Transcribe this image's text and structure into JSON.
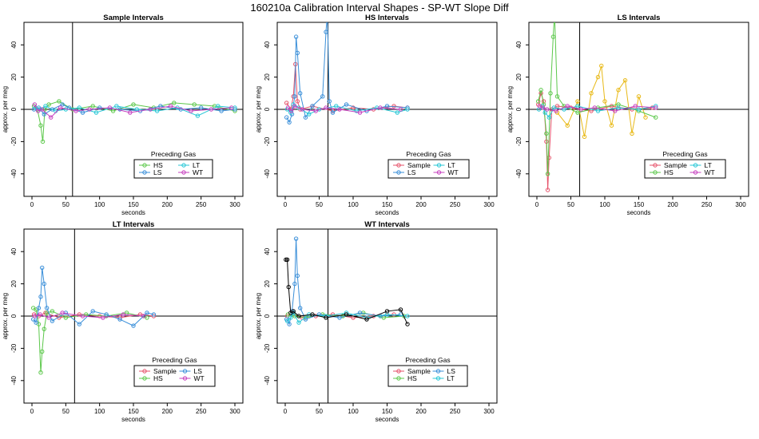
{
  "title": "160210a   Calibration Interval Shapes - SP-WT Slope Diff",
  "colors": {
    "Sample": "#E6536B",
    "HS": "#5CC84B",
    "LS": "#3A8FD9",
    "LT": "#27C7D6",
    "WT": "#C63FBF",
    "Self": "#000000",
    "Extra": "#E8B917"
  },
  "chart_data": [
    {
      "type": "scatter",
      "title": "Sample Intervals",
      "xlabel": "seconds",
      "ylabel": "approx. per meg",
      "xlim": [
        0,
        300
      ],
      "ylim": [
        -50,
        50
      ],
      "xticks": [
        0,
        50,
        100,
        150,
        200,
        250,
        300
      ],
      "yticks": [
        -40,
        -20,
        0,
        20,
        40
      ],
      "vline": 60,
      "hline": 0,
      "legend": {
        "title": "Preceding Gas",
        "entries": [
          "HS",
          "LT",
          "LS",
          "WT"
        ]
      },
      "series": [
        {
          "name": "HS",
          "x": [
            3,
            8,
            13,
            16,
            19,
            25,
            40,
            60,
            90,
            120,
            150,
            180,
            210,
            240,
            270,
            300
          ],
          "y": [
            2,
            0,
            -10,
            -20,
            0,
            3,
            5,
            0,
            2,
            -1,
            3,
            1,
            4,
            3,
            2,
            -1
          ]
        },
        {
          "name": "LS",
          "x": [
            3,
            10,
            18,
            30,
            45,
            55,
            75,
            100,
            130,
            160,
            190,
            220,
            250,
            280,
            300
          ],
          "y": [
            0,
            1,
            -3,
            0,
            3,
            1,
            -2,
            1,
            0,
            -1,
            2,
            0,
            1,
            -1,
            0
          ]
        },
        {
          "name": "LT",
          "x": [
            5,
            12,
            20,
            35,
            50,
            70,
            95,
            125,
            155,
            185,
            215,
            245,
            275,
            300
          ],
          "y": [
            1,
            0,
            2,
            -1,
            0,
            1,
            -2,
            2,
            0,
            -1,
            1,
            -4,
            2,
            1
          ]
        },
        {
          "name": "WT",
          "x": [
            4,
            9,
            15,
            28,
            42,
            65,
            85,
            115,
            145,
            175,
            205,
            235,
            265,
            295
          ],
          "y": [
            3,
            -1,
            0,
            -5,
            1,
            -1,
            0,
            1,
            -2,
            0,
            2,
            -1,
            0,
            1
          ]
        }
      ]
    },
    {
      "type": "scatter",
      "title": "HS Intervals",
      "xlabel": "seconds",
      "ylabel": "approx. per meg",
      "xlim": [
        0,
        300
      ],
      "ylim": [
        -50,
        50
      ],
      "xticks": [
        0,
        50,
        100,
        150,
        200,
        250,
        300
      ],
      "yticks": [
        -40,
        -20,
        0,
        20,
        40
      ],
      "vline": 63,
      "hline": 0,
      "legend": {
        "title": "Preceding Gas",
        "entries": [
          "Sample",
          "LT",
          "LS",
          "WT"
        ]
      },
      "series": [
        {
          "name": "Sample",
          "x": [
            2,
            8,
            12,
            15,
            18,
            22,
            40,
            70,
            100,
            130,
            160,
            180
          ],
          "y": [
            4,
            0,
            8,
            28,
            5,
            0,
            2,
            -1,
            1,
            0,
            2,
            1
          ]
        },
        {
          "name": "LS",
          "x": [
            2,
            6,
            10,
            14,
            16,
            18,
            22,
            30,
            40,
            55,
            60,
            62,
            65,
            70,
            90,
            120,
            150,
            180
          ],
          "y": [
            -5,
            -8,
            -3,
            8,
            45,
            35,
            10,
            -5,
            2,
            8,
            48,
            60,
            5,
            -2,
            3,
            -1,
            2,
            1
          ]
        },
        {
          "name": "LT",
          "x": [
            3,
            8,
            12,
            20,
            35,
            50,
            75,
            105,
            135,
            165,
            180
          ],
          "y": [
            0,
            -2,
            3,
            1,
            -3,
            0,
            2,
            -1,
            1,
            -2,
            0
          ]
        },
        {
          "name": "WT",
          "x": [
            4,
            9,
            14,
            25,
            45,
            60,
            80,
            110,
            140,
            170
          ],
          "y": [
            1,
            -1,
            2,
            0,
            -1,
            1,
            0,
            -2,
            1,
            0
          ]
        }
      ]
    },
    {
      "type": "scatter",
      "title": "LS Intervals",
      "xlabel": "seconds",
      "ylabel": "approx. per meg",
      "xlim": [
        0,
        300
      ],
      "ylim": [
        -50,
        50
      ],
      "xticks": [
        0,
        50,
        100,
        150,
        200,
        250,
        300
      ],
      "yticks": [
        -40,
        -20,
        0,
        20,
        40
      ],
      "vline": 63,
      "hline": 0,
      "legend": {
        "title": "Preceding Gas",
        "entries": [
          "Sample",
          "LT",
          "HS",
          "WT"
        ]
      },
      "series": [
        {
          "name": "Sample",
          "x": [
            2,
            6,
            10,
            14,
            16,
            18,
            22,
            30,
            50,
            80,
            110,
            140,
            170
          ],
          "y": [
            3,
            10,
            5,
            -20,
            -50,
            -30,
            0,
            2,
            1,
            -1,
            2,
            0,
            1
          ]
        },
        {
          "name": "HS",
          "x": [
            2,
            6,
            10,
            14,
            16,
            20,
            24,
            26,
            30,
            40,
            60,
            90,
            120,
            150,
            175
          ],
          "y": [
            5,
            12,
            3,
            -15,
            -40,
            10,
            45,
            60,
            8,
            2,
            -2,
            1,
            3,
            -1,
            -5
          ]
        },
        {
          "name": "LT",
          "x": [
            3,
            8,
            12,
            18,
            25,
            40,
            60,
            90,
            120,
            150,
            175
          ],
          "y": [
            0,
            2,
            -2,
            -5,
            1,
            0,
            2,
            -1,
            1,
            0,
            2
          ]
        },
        {
          "name": "WT",
          "x": [
            4,
            9,
            15,
            28,
            45,
            65,
            85,
            115,
            145,
            175
          ],
          "y": [
            2,
            1,
            0,
            -1,
            2,
            0,
            1,
            -1,
            2,
            1
          ]
        }
      ],
      "extra_series": {
        "x": [
          30,
          45,
          60,
          70,
          80,
          90,
          95,
          100,
          110,
          120,
          130,
          140,
          150,
          160
        ],
        "y": [
          -2,
          -10,
          5,
          -17,
          10,
          20,
          27,
          5,
          -10,
          12,
          18,
          -15,
          8,
          -5
        ]
      }
    },
    {
      "type": "scatter",
      "title": "LT Intervals",
      "xlabel": "seconds",
      "ylabel": "approx. per meg",
      "xlim": [
        0,
        300
      ],
      "ylim": [
        -50,
        50
      ],
      "xticks": [
        0,
        50,
        100,
        150,
        200,
        250,
        300
      ],
      "yticks": [
        -40,
        -20,
        0,
        20,
        40
      ],
      "vline": 63,
      "hline": 0,
      "legend": {
        "title": "Preceding Gas",
        "entries": [
          "Sample",
          "LS",
          "HS",
          "WT"
        ]
      },
      "series": [
        {
          "name": "Sample",
          "x": [
            3,
            10,
            20,
            40,
            70,
            100,
            130,
            160,
            180
          ],
          "y": [
            1,
            0,
            2,
            -1,
            1,
            0,
            -1,
            1,
            0
          ]
        },
        {
          "name": "HS",
          "x": [
            2,
            6,
            10,
            13,
            15,
            18,
            22,
            30,
            50,
            80,
            110,
            140,
            170
          ],
          "y": [
            5,
            4,
            -5,
            -35,
            -22,
            -8,
            2,
            3,
            -1,
            1,
            0,
            2,
            -1
          ]
        },
        {
          "name": "LS",
          "x": [
            2,
            6,
            10,
            13,
            15,
            18,
            22,
            30,
            50,
            70,
            90,
            110,
            130,
            150,
            170,
            180
          ],
          "y": [
            -2,
            -4,
            5,
            12,
            30,
            20,
            5,
            -3,
            2,
            -5,
            3,
            1,
            -2,
            -6,
            2,
            1
          ]
        },
        {
          "name": "WT",
          "x": [
            4,
            12,
            25,
            45,
            75,
            105,
            135,
            165
          ],
          "y": [
            0,
            1,
            -1,
            2,
            0,
            -1,
            1,
            0
          ]
        }
      ]
    },
    {
      "type": "scatter",
      "title": "WT Intervals",
      "xlabel": "seconds",
      "ylabel": "approx. per meg",
      "xlim": [
        0,
        300
      ],
      "ylim": [
        -50,
        50
      ],
      "xticks": [
        0,
        50,
        100,
        150,
        200,
        250,
        300
      ],
      "yticks": [
        -40,
        -20,
        0,
        20,
        40
      ],
      "vline": 63,
      "hline": 0,
      "legend": {
        "title": "Preceding Gas",
        "entries": [
          "Sample",
          "LS",
          "HS",
          "LT"
        ]
      },
      "series": [
        {
          "name": "Sample",
          "x": [
            3,
            12,
            25,
            45,
            70,
            100,
            130,
            160
          ],
          "y": [
            0,
            1,
            -1,
            0,
            1,
            -1,
            0,
            1
          ]
        },
        {
          "name": "HS",
          "x": [
            4,
            14,
            30,
            55,
            85,
            115,
            145,
            175
          ],
          "y": [
            1,
            0,
            -1,
            1,
            0,
            2,
            -1,
            0
          ]
        },
        {
          "name": "LS",
          "x": [
            2,
            6,
            10,
            14,
            16,
            18,
            22,
            30,
            50,
            80,
            110,
            140,
            170
          ],
          "y": [
            -2,
            -5,
            3,
            20,
            48,
            25,
            5,
            -2,
            1,
            -1,
            2,
            0,
            1
          ]
        },
        {
          "name": "LT",
          "x": [
            3,
            8,
            12,
            20,
            35,
            60,
            90,
            120,
            150,
            180
          ],
          "y": [
            -3,
            -1,
            2,
            -4,
            1,
            0,
            2,
            -1,
            1,
            0
          ]
        }
      ],
      "self_series": {
        "x": [
          1,
          3,
          5,
          8,
          12,
          20,
          40,
          60,
          90,
          120,
          150,
          170,
          180
        ],
        "y": [
          35,
          35,
          18,
          2,
          3,
          0,
          1,
          -1,
          1,
          -2,
          3,
          4,
          -5
        ]
      }
    }
  ]
}
